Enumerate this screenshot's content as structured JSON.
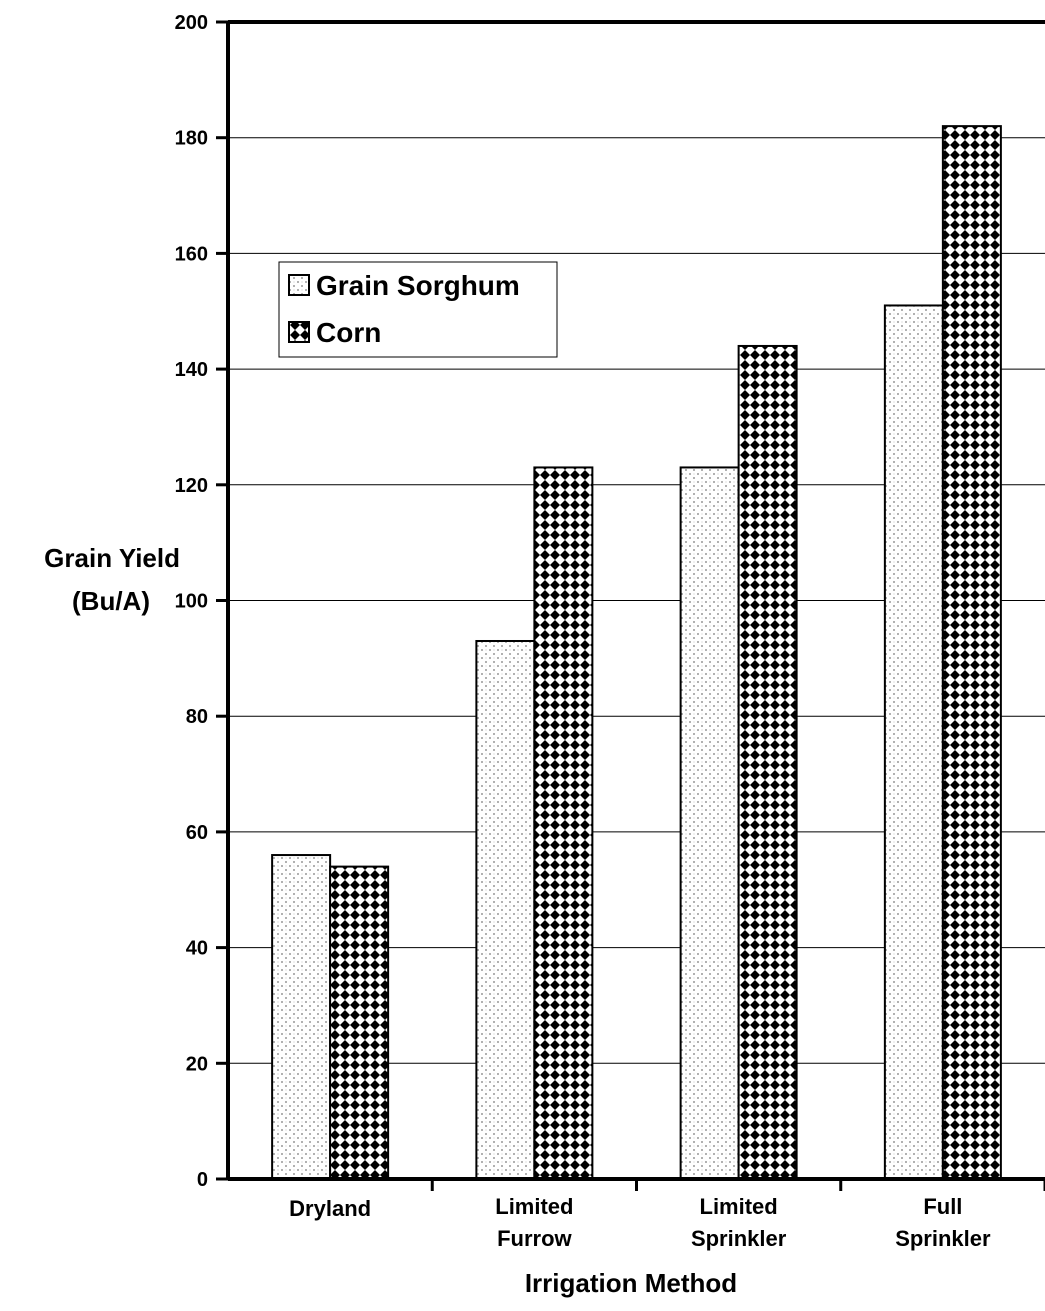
{
  "chart_data": {
    "type": "bar",
    "title": "",
    "xlabel": "Irrigation Method",
    "ylabel": [
      "Grain Yield",
      "(Bu/A)"
    ],
    "ylim": [
      0,
      200
    ],
    "yticks": [
      0,
      20,
      40,
      60,
      80,
      100,
      120,
      140,
      160,
      180,
      200
    ],
    "grid": true,
    "legend_position": "upper-left",
    "categories": [
      [
        "Dryland"
      ],
      [
        "Limited",
        "Furrow"
      ],
      [
        "Limited",
        "Sprinkler"
      ],
      [
        "Full",
        "Sprinkler"
      ]
    ],
    "series": [
      {
        "name": "Grain Sorghum",
        "values": [
          56,
          93,
          123,
          151
        ],
        "pattern": "dotted-light",
        "color": "#bdbdbd"
      },
      {
        "name": "Corn",
        "values": [
          54,
          123,
          144,
          182
        ],
        "pattern": "checker-dark",
        "color": "#000000"
      }
    ]
  }
}
